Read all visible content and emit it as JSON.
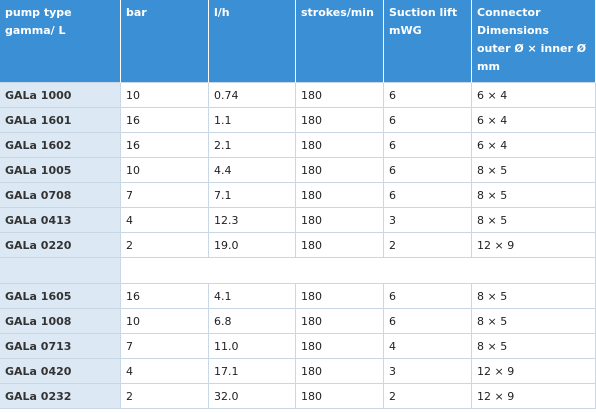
{
  "table": {
    "header": [
      [
        "pump type",
        "gamma/ L"
      ],
      [
        "bar"
      ],
      [
        "l/h"
      ],
      [
        "strokes/min"
      ],
      [
        "Suction lift",
        "mWG"
      ],
      [
        "Connector",
        "Dimensions",
        "outer Ø × inner Ø",
        "mm"
      ]
    ],
    "groups": [
      [
        [
          "GALa 1000",
          "10",
          "0.74",
          "180",
          "6",
          "6 × 4"
        ],
        [
          "GALa 1601",
          "16",
          "1.1",
          "180",
          "6",
          "6 × 4"
        ],
        [
          "GALa 1602",
          "16",
          "2.1",
          "180",
          "6",
          "6 × 4"
        ],
        [
          "GALa 1005",
          "10",
          "4.4",
          "180",
          "6",
          "8 × 5"
        ],
        [
          "GALa 0708",
          "7",
          "7.1",
          "180",
          "6",
          "8 × 5"
        ],
        [
          "GALa 0413",
          "4",
          "12.3",
          "180",
          "3",
          "8 × 5"
        ],
        [
          "GALa 0220",
          "2",
          "19.0",
          "180",
          "2",
          "12 × 9"
        ]
      ],
      [
        [
          "GALa 1605",
          "16",
          "4.1",
          "180",
          "6",
          "8 × 5"
        ],
        [
          "GALa 1008",
          "10",
          "6.8",
          "180",
          "6",
          "8 × 5"
        ],
        [
          "GALa 0713",
          "7",
          "11.0",
          "180",
          "4",
          "8 × 5"
        ],
        [
          "GALa 0420",
          "4",
          "17.1",
          "180",
          "3",
          "12 × 9"
        ],
        [
          "GALa 0232",
          "2",
          "32.0",
          "180",
          "2",
          "12 × 9"
        ]
      ]
    ]
  }
}
